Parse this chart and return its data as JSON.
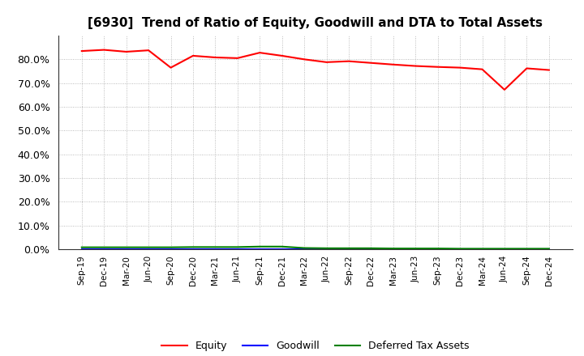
{
  "title": "[6930]  Trend of Ratio of Equity, Goodwill and DTA to Total Assets",
  "x_labels": [
    "Sep-19",
    "Dec-19",
    "Mar-20",
    "Jun-20",
    "Sep-20",
    "Dec-20",
    "Mar-21",
    "Jun-21",
    "Sep-21",
    "Dec-21",
    "Mar-22",
    "Jun-22",
    "Sep-22",
    "Dec-22",
    "Mar-23",
    "Jun-23",
    "Sep-23",
    "Dec-23",
    "Mar-24",
    "Jun-24",
    "Sep-24",
    "Dec-24"
  ],
  "equity": [
    83.5,
    84.0,
    83.2,
    83.8,
    76.5,
    81.5,
    80.8,
    80.5,
    82.8,
    81.5,
    80.0,
    78.8,
    79.2,
    78.5,
    77.8,
    77.2,
    76.8,
    76.5,
    75.8,
    67.2,
    76.2,
    75.5
  ],
  "goodwill": [
    0.0,
    0.0,
    0.0,
    0.0,
    0.0,
    0.0,
    0.0,
    0.0,
    0.0,
    0.0,
    0.0,
    0.0,
    0.0,
    0.0,
    0.0,
    0.0,
    0.0,
    0.0,
    0.0,
    0.0,
    0.0,
    0.0
  ],
  "dta": [
    0.8,
    0.8,
    0.8,
    0.8,
    0.8,
    0.9,
    0.9,
    0.9,
    1.1,
    1.1,
    0.5,
    0.4,
    0.4,
    0.4,
    0.3,
    0.3,
    0.3,
    0.2,
    0.2,
    0.2,
    0.2,
    0.2
  ],
  "equity_color": "#FF0000",
  "goodwill_color": "#0000FF",
  "dta_color": "#008000",
  "background_color": "#FFFFFF",
  "grid_color": "#AAAAAA",
  "ylim": [
    0,
    90
  ],
  "yticks": [
    0,
    10,
    20,
    30,
    40,
    50,
    60,
    70,
    80
  ],
  "legend_labels": [
    "Equity",
    "Goodwill",
    "Deferred Tax Assets"
  ]
}
